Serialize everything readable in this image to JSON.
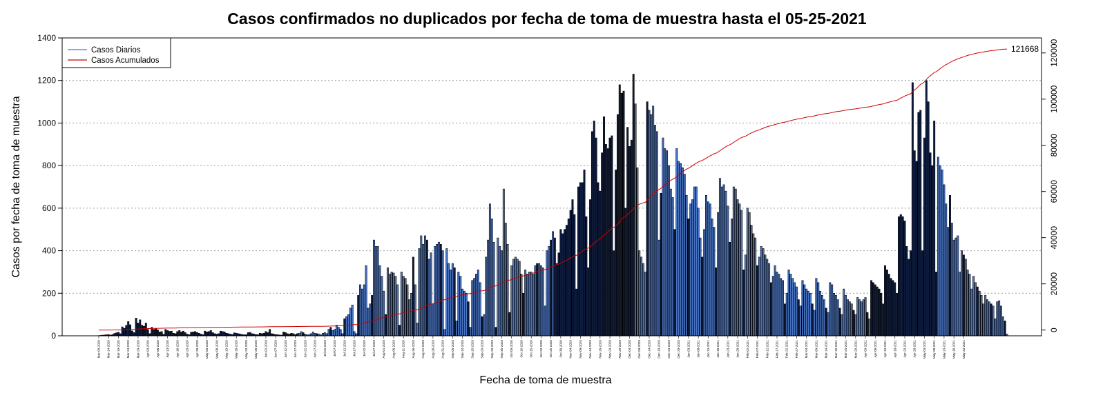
{
  "chart_data": {
    "type": "bar",
    "title": "Casos confirmados no duplicados por fecha de toma de muestra hasta el 05-25-2021",
    "xlabel": "Fecha de toma de muestra",
    "ylabel": "Casos por fecha de toma de muestra",
    "ylim": [
      0,
      1400
    ],
    "yticks": [
      "0",
      "200",
      "400",
      "600",
      "800",
      "1000",
      "1200",
      "1400"
    ],
    "y2lim": [
      -2500,
      126500
    ],
    "y2ticks": [
      "0",
      "20000",
      "40000",
      "60000",
      "80000",
      "100000",
      "120000"
    ],
    "grid": "horizontal-dotted",
    "legend_position": "top-left",
    "legend": [
      "Casos Diarios",
      "Casos Acumulados"
    ],
    "colors": {
      "bar_light": "#4a76c6",
      "bar_dark": "#0d1b3e",
      "bar_outline": "#000000",
      "line_cumulative": "#cc0000",
      "legend_daily": "#4a76c6",
      "legend_cumulative": "#cc0000"
    },
    "annotation": "121668",
    "x_start_date": "Mar-09-2020",
    "x_end_date": "May-25-2021",
    "date_ticks": [
      "Mar-09-2020",
      "Mar-14-2020",
      "Mar-19-2020",
      "Mar-24-2020",
      "Mar-29-2020",
      "Apr-03-2020",
      "Apr-08-2020",
      "Apr-13-2020",
      "Apr-18-2020",
      "Apr-23-2020",
      "Apr-28-2020",
      "May-03-2020",
      "May-08-2020",
      "May-13-2020",
      "May-18-2020",
      "May-23-2020",
      "May-28-2020",
      "Jun-02-2020",
      "Jun-07-2020",
      "Jun-12-2020",
      "Jun-17-2020",
      "Jun-22-2020",
      "Jun-27-2020",
      "Jul-02-2020",
      "Jul-07-2020",
      "Jul-12-2020",
      "Jul-17-2020",
      "Jul-22-2020",
      "Jul-27-2020",
      "Aug-01-2020",
      "Aug-06-2020",
      "Aug-11-2020",
      "Aug-16-2020",
      "Aug-21-2020",
      "Aug-26-2020",
      "Aug-31-2020",
      "Sep-05-2020",
      "Sep-10-2020",
      "Sep-15-2020",
      "Sep-20-2020",
      "Sep-25-2020",
      "Sep-30-2020",
      "Oct-05-2020",
      "Oct-10-2020",
      "Oct-15-2020",
      "Oct-20-2020",
      "Oct-25-2020",
      "Oct-30-2020",
      "Nov-04-2020",
      "Nov-09-2020",
      "Nov-14-2020",
      "Nov-19-2020",
      "Nov-24-2020",
      "Nov-29-2020",
      "Dec-04-2020",
      "Dec-09-2020",
      "Dec-14-2020",
      "Dec-19-2020",
      "Dec-24-2020",
      "Dec-29-2020",
      "Jan-03-2021",
      "Jan-08-2021",
      "Jan-13-2021",
      "Jan-18-2021",
      "Jan-23-2021",
      "Jan-28-2021",
      "Feb-02-2021",
      "Feb-07-2021",
      "Feb-12-2021",
      "Feb-17-2021",
      "Feb-22-2021",
      "Feb-27-2021",
      "Mar-04-2021",
      "Mar-09-2021",
      "Mar-14-2021",
      "Mar-19-2021",
      "Mar-24-2021",
      "Mar-29-2021",
      "Apr-03-2021",
      "Apr-08-2021",
      "Apr-13-2021",
      "Apr-18-2021",
      "Apr-23-2021",
      "Apr-28-2021",
      "May-03-2021",
      "May-08-2021",
      "May-13-2021",
      "May-18-2021",
      "May-23-2021"
    ],
    "daily_values": [
      1,
      2,
      3,
      4,
      5,
      6,
      3,
      6,
      11,
      14,
      17,
      10,
      42,
      35,
      49,
      67,
      52,
      23,
      15,
      83,
      60,
      75,
      50,
      45,
      60,
      30,
      10,
      40,
      30,
      35,
      28,
      18,
      20,
      7,
      30,
      25,
      21,
      22,
      12,
      10,
      20,
      25,
      18,
      22,
      15,
      8,
      5,
      17,
      18,
      20,
      16,
      12,
      8,
      5,
      22,
      18,
      20,
      25,
      15,
      10,
      8,
      10,
      22,
      20,
      18,
      12,
      10,
      8,
      6,
      14,
      12,
      10,
      8,
      6,
      5,
      5,
      15,
      16,
      10,
      8,
      6,
      5,
      12,
      10,
      12,
      20,
      15,
      30,
      10,
      8,
      6,
      5,
      4,
      3,
      18,
      15,
      10,
      8,
      12,
      10,
      6,
      10,
      12,
      20,
      15,
      8,
      5,
      5,
      10,
      18,
      12,
      10,
      8,
      5,
      12,
      15,
      10,
      30,
      40,
      25,
      30,
      50,
      40,
      30,
      10,
      80,
      90,
      100,
      130,
      145,
      20,
      10,
      190,
      240,
      220,
      240,
      330,
      130,
      150,
      190,
      450,
      420,
      420,
      330,
      280,
      210,
      100,
      320,
      290,
      300,
      295,
      280,
      240,
      50,
      300,
      280,
      270,
      240,
      170,
      200,
      370,
      240,
      60,
      410,
      470,
      430,
      470,
      450,
      360,
      390,
      150,
      420,
      430,
      440,
      430,
      400,
      30,
      410,
      340,
      310,
      340,
      320,
      70,
      300,
      280,
      220,
      210,
      200,
      160,
      40,
      260,
      270,
      290,
      310,
      250,
      90,
      100,
      370,
      450,
      620,
      550,
      440,
      40,
      460,
      420,
      400,
      690,
      530,
      430,
      110,
      330,
      360,
      370,
      360,
      350,
      290,
      200,
      310,
      290,
      300,
      300,
      290,
      330,
      340,
      340,
      330,
      320,
      140,
      400,
      420,
      450,
      490,
      460,
      340,
      390,
      500,
      480,
      500,
      520,
      550,
      590,
      640,
      570,
      220,
      700,
      720,
      720,
      780,
      560,
      320,
      640,
      960,
      1010,
      930,
      720,
      680,
      860,
      1030,
      900,
      880,
      930,
      940,
      400,
      780,
      1040,
      1180,
      1140,
      1150,
      600,
      980,
      890,
      920,
      1230,
      1090,
      790,
      400,
      370,
      340,
      300,
      1100,
      1060,
      1040,
      1080,
      990,
      960,
      450,
      670,
      930,
      880,
      870,
      800,
      690,
      650,
      500,
      880,
      820,
      810,
      790,
      760,
      660,
      550,
      620,
      640,
      700,
      700,
      600,
      460,
      370,
      500,
      660,
      630,
      620,
      550,
      510,
      320,
      580,
      740,
      700,
      710,
      680,
      610,
      440,
      550,
      700,
      690,
      640,
      620,
      590,
      310,
      380,
      600,
      580,
      520,
      480,
      460,
      330,
      370,
      420,
      410,
      380,
      360,
      340,
      250,
      280,
      330,
      300,
      290,
      270,
      260,
      150,
      200,
      310,
      290,
      270,
      250,
      230,
      170,
      140,
      260,
      240,
      220,
      210,
      200,
      150,
      120,
      270,
      250,
      210,
      190,
      170,
      130,
      110,
      250,
      240,
      200,
      190,
      170,
      130,
      100,
      220,
      190,
      170,
      160,
      150,
      120,
      100,
      180,
      170,
      160,
      170,
      180,
      110,
      80,
      260,
      250,
      240,
      230,
      220,
      200,
      150,
      330,
      310,
      290,
      270,
      260,
      250,
      200,
      560,
      570,
      560,
      540,
      420,
      360,
      400,
      1190,
      870,
      820,
      1050,
      1060,
      400,
      930,
      1200,
      1100,
      860,
      800,
      1010,
      300,
      840,
      800,
      780,
      710,
      620,
      510,
      660,
      530,
      450,
      460,
      470,
      300,
      400,
      380,
      360,
      310,
      290,
      220,
      280,
      250,
      230,
      210,
      190,
      150,
      190,
      170,
      160,
      150,
      140,
      80,
      160,
      165,
      140,
      90,
      70,
      8
    ]
  }
}
